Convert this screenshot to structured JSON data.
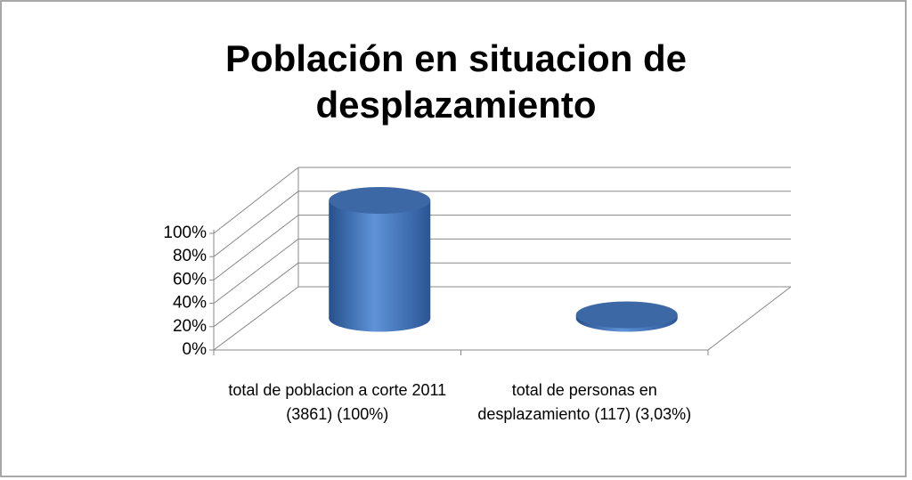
{
  "chart_data": {
    "type": "bar3d",
    "title": "Población en situacion de desplazamiento",
    "categories": [
      "total de poblacion a corte 2011 (3861) (100%)",
      "total de personas en desplazamiento (117) (3,03%)"
    ],
    "values": [
      100,
      3.03
    ],
    "color": "#4a7cc0",
    "ylim": [
      0,
      100
    ],
    "yticks": [
      {
        "value": 0,
        "label": "0%"
      },
      {
        "value": 20,
        "label": "20%"
      },
      {
        "value": 40,
        "label": "40%"
      },
      {
        "value": 60,
        "label": "60%"
      },
      {
        "value": 80,
        "label": "80%"
      },
      {
        "value": 100,
        "label": "100%"
      }
    ],
    "grid": true
  }
}
